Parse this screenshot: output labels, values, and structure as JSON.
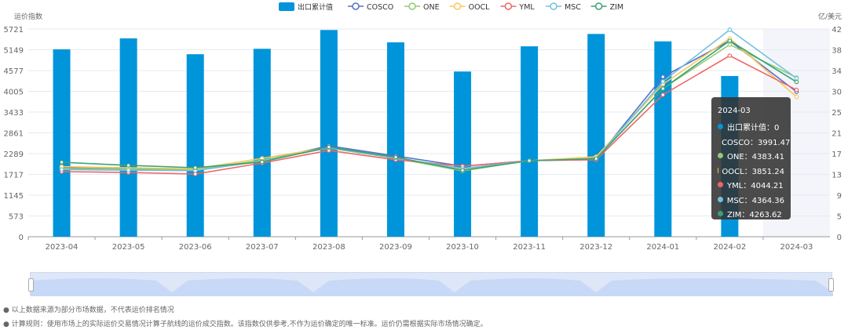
{
  "chart_data": {
    "type": "bar+line",
    "categories": [
      "2023-04",
      "2023-05",
      "2023-06",
      "2023-07",
      "2023-08",
      "2023-09",
      "2023-10",
      "2023-11",
      "2023-12",
      "2024-01",
      "2024-02",
      "2024-03"
    ],
    "ylabel_left": "运价指数",
    "ylabel_right": "亿/美元",
    "yticks_left": [
      "0",
      "573",
      "1145",
      "1717",
      "2289",
      "2861",
      "3433",
      "4005",
      "4577",
      "5149",
      "5721"
    ],
    "yticks_right": [
      "0",
      "5",
      "9",
      "13",
      "17",
      "21",
      "25",
      "30",
      "34",
      "38",
      "42"
    ],
    "ylim_left": [
      0,
      5721
    ],
    "ylim_right": [
      0,
      42
    ],
    "grid": true,
    "legend": "top-center",
    "bar": {
      "name": "出口累计值",
      "color": "#0095da",
      "values": [
        37.9,
        40.1,
        36.9,
        38.0,
        41.8,
        39.3,
        33.4,
        38.5,
        41.0,
        39.5,
        32.5,
        0
      ]
    },
    "series": [
      {
        "name": "COSCO",
        "color": "#5470c6",
        "values": [
          1900,
          1878,
          1857,
          2094,
          2504,
          2224,
          1943,
          2094,
          2140,
          4404,
          5397,
          3991.47
        ]
      },
      {
        "name": "ONE",
        "color": "#91cc75",
        "values": [
          1880,
          1860,
          1840,
          2110,
          2440,
          2160,
          1813,
          2094,
          2160,
          4080,
          5290,
          4383.41
        ]
      },
      {
        "name": "OOCL",
        "color": "#fac858",
        "values": [
          1930,
          1900,
          1870,
          2159,
          2460,
          2180,
          1850,
          2094,
          2202,
          4200,
          5462,
          3851.24
        ]
      },
      {
        "name": "YML",
        "color": "#ee6666",
        "values": [
          1792,
          1770,
          1727,
          2029,
          2375,
          2120,
          1943,
          2094,
          2120,
          3908,
          4987,
          4044.21
        ]
      },
      {
        "name": "MSC",
        "color": "#73c0de",
        "values": [
          1850,
          1830,
          1820,
          2080,
          2450,
          2170,
          1880,
          2094,
          2150,
          4275,
          5700,
          4364.36
        ]
      },
      {
        "name": "ZIM",
        "color": "#3ba272",
        "values": [
          2051,
          1965,
          1900,
          2060,
          2470,
          2190,
          1830,
          2094,
          2150,
          4080,
          5397,
          4263.62
        ]
      }
    ]
  },
  "tooltip": {
    "title": "2024-03",
    "rows": [
      "出口累计值：0",
      "COSCO：3991.47",
      "ONE：4383.41",
      "OOCL：3851.24",
      "YML：4044.21",
      "MSC：4364.36",
      "ZIM：4263.62"
    ]
  },
  "notes": [
    "以上数据来源为部分市场数据，不代表运价排名情况",
    "计算规则：使用市场上的实际运价交易情况计算子航线的运价成交指数。该指数仅供参考,不作为运价确定的唯一标准。运价仍需根据实际市场情况确定。"
  ]
}
